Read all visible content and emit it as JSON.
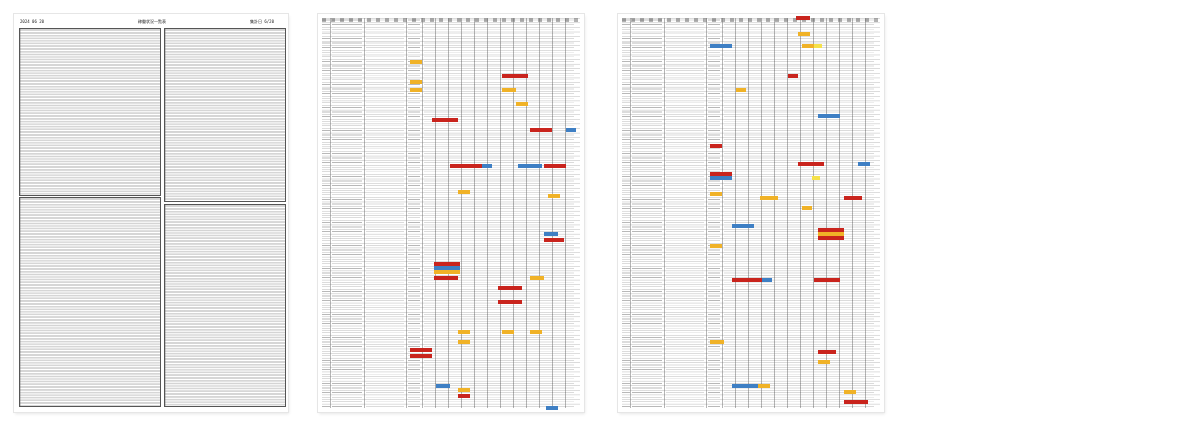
{
  "pages": [
    {
      "name": "summary-sheet",
      "header": {
        "left": "2024 06 20",
        "center": "稼働状況一覧表",
        "right": "集計日 6/20"
      }
    },
    {
      "name": "status-grid-1"
    },
    {
      "name": "status-grid-2"
    }
  ],
  "colors": {
    "red": "#c9241d",
    "orange": "#f0b227",
    "blue": "#3e7fc4",
    "yellow": "#f5e14a"
  }
}
